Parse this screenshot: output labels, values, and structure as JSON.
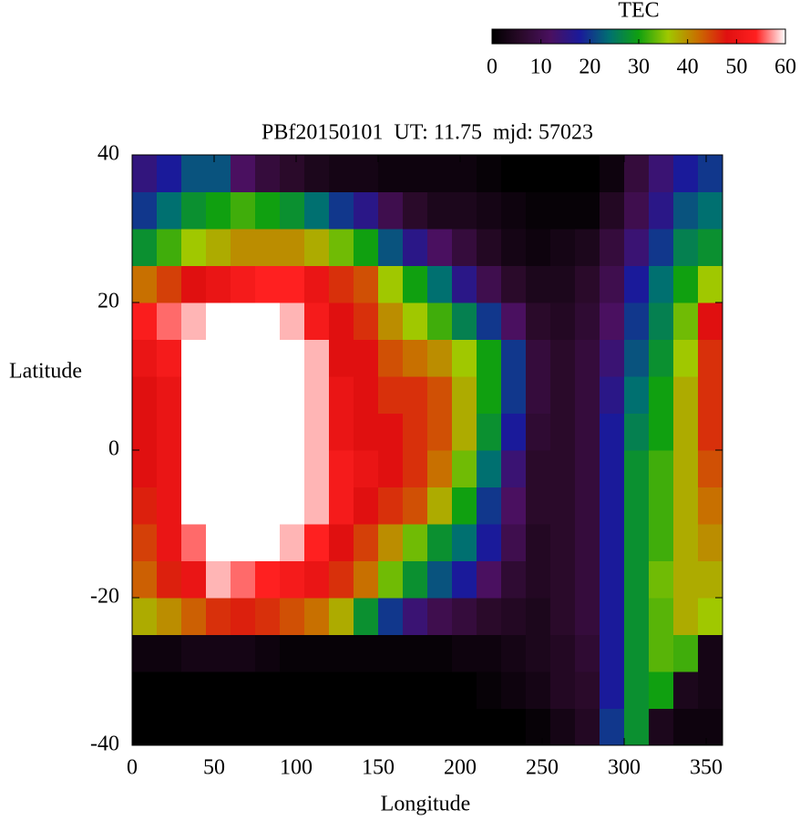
{
  "chart_data": {
    "type": "heatmap",
    "title": "PBf20150101  UT: 11.75  mjd: 57023",
    "x_label": "Longitude",
    "y_label": "Latitude",
    "colorbar_label": "TEC",
    "x": [
      7.5,
      22.5,
      37.5,
      52.5,
      67.5,
      82.5,
      97.5,
      112.5,
      127.5,
      142.5,
      157.5,
      172.5,
      187.5,
      202.5,
      217.5,
      232.5,
      247.5,
      262.5,
      277.5,
      292.5,
      307.5,
      322.5,
      337.5,
      352.5
    ],
    "y": [
      -37.5,
      -32.5,
      -27.5,
      -22.5,
      -17.5,
      -12.5,
      -7.5,
      -2.5,
      2.5,
      7.5,
      12.5,
      17.5,
      22.5,
      27.5,
      32.5,
      37.5
    ],
    "z": [
      [
        0,
        0,
        0,
        0,
        0,
        0,
        0,
        0,
        0,
        0,
        0,
        0,
        0,
        0,
        0,
        0,
        1,
        3,
        5,
        20,
        28,
        4,
        2,
        2
      ],
      [
        0,
        0,
        0,
        0,
        0,
        0,
        0,
        0,
        0,
        0,
        0,
        0,
        0,
        0,
        1,
        2,
        3,
        5,
        6,
        18,
        28,
        30,
        4,
        3
      ],
      [
        2,
        2,
        3,
        3,
        3,
        2,
        1,
        1,
        1,
        1,
        1,
        1,
        1,
        2,
        2,
        3,
        4,
        5,
        7,
        18,
        28,
        33,
        32,
        3
      ],
      [
        38,
        40,
        43,
        46,
        47,
        46,
        44,
        42,
        38,
        28,
        20,
        14,
        10,
        8,
        6,
        5,
        4,
        6,
        8,
        18,
        28,
        33,
        38,
        36
      ],
      [
        43,
        47,
        50,
        58,
        56,
        54,
        52,
        50,
        46,
        42,
        34,
        28,
        22,
        18,
        12,
        7,
        5,
        6,
        8,
        18,
        28,
        34,
        38,
        38
      ],
      [
        45,
        50,
        56,
        60,
        60,
        60,
        58,
        54,
        48,
        45,
        40,
        34,
        28,
        24,
        18,
        10,
        5,
        6,
        8,
        18,
        28,
        32,
        38,
        40
      ],
      [
        47,
        50,
        60,
        60,
        60,
        60,
        60,
        58,
        52,
        48,
        46,
        44,
        38,
        30,
        20,
        12,
        6,
        6,
        8,
        18,
        28,
        32,
        38,
        42
      ],
      [
        48,
        50,
        60,
        60,
        60,
        60,
        60,
        58,
        52,
        50,
        48,
        46,
        42,
        34,
        24,
        14,
        6,
        6,
        8,
        18,
        28,
        32,
        38,
        44
      ],
      [
        48,
        50,
        60,
        60,
        60,
        60,
        60,
        58,
        50,
        48,
        48,
        46,
        44,
        38,
        28,
        18,
        7,
        6,
        8,
        18,
        26,
        30,
        38,
        46
      ],
      [
        48,
        50,
        60,
        60,
        60,
        60,
        60,
        58,
        50,
        48,
        46,
        46,
        44,
        38,
        30,
        20,
        8,
        6,
        8,
        16,
        24,
        30,
        38,
        46
      ],
      [
        50,
        52,
        60,
        60,
        60,
        60,
        60,
        58,
        48,
        48,
        44,
        42,
        40,
        36,
        30,
        20,
        8,
        6,
        8,
        14,
        22,
        28,
        36,
        46
      ],
      [
        53,
        56,
        58,
        60,
        60,
        60,
        58,
        52,
        48,
        46,
        40,
        36,
        32,
        26,
        20,
        12,
        6,
        5,
        7,
        12,
        20,
        26,
        34,
        48
      ],
      [
        42,
        45,
        48,
        50,
        52,
        54,
        54,
        50,
        46,
        44,
        36,
        30,
        24,
        16,
        10,
        6,
        4,
        4,
        6,
        10,
        18,
        24,
        30,
        36
      ],
      [
        28,
        32,
        36,
        38,
        40,
        40,
        40,
        38,
        34,
        30,
        22,
        16,
        12,
        8,
        5,
        3,
        2,
        3,
        4,
        8,
        14,
        20,
        26,
        28
      ],
      [
        20,
        24,
        28,
        30,
        32,
        30,
        28,
        24,
        20,
        16,
        10,
        6,
        4,
        4,
        3,
        2,
        1,
        1,
        1,
        5,
        10,
        16,
        22,
        24
      ],
      [
        15,
        18,
        22,
        22,
        12,
        8,
        6,
        4,
        3,
        3,
        2,
        2,
        2,
        2,
        1,
        0,
        0,
        0,
        0,
        2,
        8,
        14,
        18,
        20
      ]
    ],
    "colormap": [
      "#000000",
      "#2a0a2a",
      "#4a1060",
      "#1a1a9a",
      "#007070",
      "#10a010",
      "#a0c800",
      "#c87000",
      "#e01010",
      "#ff2020",
      "#ffffff"
    ],
    "clim": [
      0,
      60
    ],
    "cticks": [
      0,
      10,
      20,
      30,
      40,
      50,
      60
    ],
    "xlim": [
      0,
      360
    ],
    "xticks": [
      0,
      50,
      100,
      150,
      200,
      250,
      300,
      350
    ],
    "ylim": [
      -40,
      40
    ],
    "yticks": [
      -40,
      -20,
      0,
      20,
      40
    ]
  }
}
